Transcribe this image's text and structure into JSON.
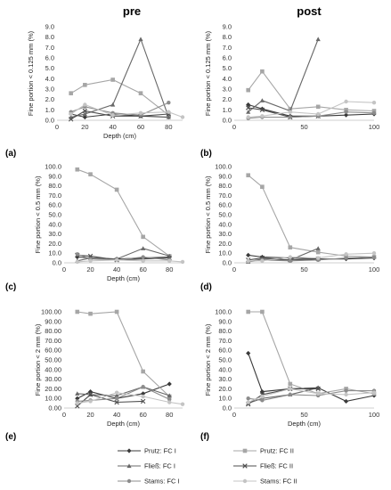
{
  "columns": [
    "pre",
    "post"
  ],
  "legend": [
    {
      "name": "Prutz: FC I",
      "color": "#3a3a3a",
      "marker": "diamond"
    },
    {
      "name": "Prutz: FC II",
      "color": "#a6a6a6",
      "marker": "square"
    },
    {
      "name": "Fließ: FC I",
      "color": "#686868",
      "marker": "triangle"
    },
    {
      "name": "Fließ: FC II",
      "color": "#4d4d4d",
      "marker": "x"
    },
    {
      "name": "Stams: FC I",
      "color": "#8c8c8c",
      "marker": "circle"
    },
    {
      "name": "Stams: FC II",
      "color": "#c4c4c4",
      "marker": "circle"
    }
  ],
  "chart_data": [
    {
      "panel": "(a)",
      "type": "line",
      "xlabel": "Depth (cm)",
      "ylabel": "Fine portion < 0.125 mm (%)",
      "xlim": [
        0,
        90
      ],
      "xticks": [
        0,
        20,
        40,
        60,
        80
      ],
      "ylim": [
        0,
        9
      ],
      "yticks": [
        "0.0",
        "1.0",
        "2.0",
        "3.0",
        "4.0",
        "5.0",
        "6.0",
        "7.0",
        "8.0",
        "9.0"
      ],
      "series": [
        {
          "name": "Prutz: FC I",
          "x": [
            10,
            20,
            40,
            60,
            80
          ],
          "y": [
            0.6,
            0.3,
            0.6,
            0.4,
            0.3
          ]
        },
        {
          "name": "Prutz: FC II",
          "x": [
            10,
            20,
            40,
            60,
            80
          ],
          "y": [
            2.6,
            3.4,
            3.9,
            2.6,
            0.5
          ]
        },
        {
          "name": "Fließ: FC I",
          "x": [
            10,
            20,
            40,
            60,
            80
          ],
          "y": [
            0.3,
            0.6,
            1.5,
            7.8,
            0.3
          ]
        },
        {
          "name": "Fließ: FC II",
          "x": [
            10,
            20,
            40,
            60,
            80
          ],
          "y": [
            0.1,
            0.9,
            0.4,
            0.4,
            0.6
          ]
        },
        {
          "name": "Stams: FC I",
          "x": [
            10,
            20,
            40,
            60,
            80
          ],
          "y": [
            0.8,
            1.3,
            0.7,
            0.5,
            1.7
          ]
        },
        {
          "name": "Stams: FC II",
          "x": [
            10,
            20,
            40,
            60,
            80,
            90
          ],
          "y": [
            0.6,
            1.5,
            0.5,
            0.7,
            0.8,
            0.3
          ]
        }
      ]
    },
    {
      "panel": "(b)",
      "type": "line",
      "xlabel": "",
      "ylabel": "Fine portion < 0.125 mm (%)",
      "xlim": [
        0,
        100
      ],
      "xticks": [
        0,
        50,
        100
      ],
      "ylim": [
        0,
        9
      ],
      "yticks": [
        "0.0",
        "1.0",
        "2.0",
        "3.0",
        "4.0",
        "5.0",
        "6.0",
        "7.0",
        "8.0",
        "9.0"
      ],
      "series": [
        {
          "name": "Prutz: FC I",
          "x": [
            10,
            20,
            40,
            60,
            80,
            100
          ],
          "y": [
            1.5,
            1.1,
            0.4,
            0.4,
            0.5,
            0.6
          ]
        },
        {
          "name": "Prutz: FC II",
          "x": [
            10,
            20,
            40,
            60,
            80,
            100
          ],
          "y": [
            2.9,
            4.7,
            1.1,
            1.3,
            1.0,
            0.9
          ]
        },
        {
          "name": "Fließ: FC I",
          "x": [
            10,
            20,
            40,
            60
          ],
          "y": [
            0.8,
            1.9,
            0.9,
            7.8
          ]
        },
        {
          "name": "Fließ: FC II",
          "x": [
            10,
            20,
            40,
            60
          ],
          "y": [
            1.2,
            1.0,
            0.3,
            0.4
          ]
        },
        {
          "name": "Stams: FC I",
          "x": [
            10,
            20,
            40,
            60,
            80,
            100
          ],
          "y": [
            0.2,
            0.3,
            0.3,
            0.4,
            0.8,
            0.7
          ]
        },
        {
          "name": "Stams: FC II",
          "x": [
            10,
            20,
            40,
            60,
            80,
            100
          ],
          "y": [
            0.3,
            0.4,
            0.8,
            0.6,
            1.8,
            1.7
          ]
        }
      ]
    },
    {
      "panel": "(c)",
      "type": "line",
      "xlabel": "Depth (cm)",
      "ylabel": "Fine portion < 0.5 mm (%)",
      "xlim": [
        0,
        90
      ],
      "xticks": [
        0,
        20,
        40,
        60,
        80
      ],
      "ylim": [
        0,
        100
      ],
      "yticks": [
        "0.0",
        "10.0",
        "20.0",
        "30.0",
        "40.0",
        "50.0",
        "60.0",
        "70.0",
        "80.0",
        "90.0",
        "100.0"
      ],
      "series": [
        {
          "name": "Prutz: FC I",
          "x": [
            10,
            20,
            40,
            60,
            80
          ],
          "y": [
            6,
            5,
            4,
            5,
            6
          ]
        },
        {
          "name": "Prutz: FC II",
          "x": [
            10,
            20,
            40,
            60,
            80
          ],
          "y": [
            97,
            92,
            76,
            27,
            7
          ]
        },
        {
          "name": "Fließ: FC I",
          "x": [
            10,
            20,
            40,
            60,
            80
          ],
          "y": [
            2,
            5,
            4,
            15,
            7
          ]
        },
        {
          "name": "Fließ: FC II",
          "x": [
            10,
            20,
            40,
            60,
            80
          ],
          "y": [
            8,
            7,
            3,
            4,
            5
          ]
        },
        {
          "name": "Stams: FC I",
          "x": [
            10,
            20,
            40,
            60,
            80
          ],
          "y": [
            9,
            4,
            3,
            6,
            3
          ]
        },
        {
          "name": "Stams: FC II",
          "x": [
            10,
            20,
            40,
            60,
            80,
            90
          ],
          "y": [
            1,
            2,
            3,
            2,
            2,
            1
          ]
        }
      ]
    },
    {
      "panel": "(d)",
      "type": "line",
      "xlabel": "",
      "ylabel": "Fine portion < 0.5 mm (%)",
      "xlim": [
        0,
        100
      ],
      "xticks": [
        0,
        50,
        100
      ],
      "ylim": [
        0,
        100
      ],
      "yticks": [
        "0.0",
        "10.0",
        "20.0",
        "30.0",
        "40.0",
        "50.0",
        "60.0",
        "70.0",
        "80.0",
        "90.0",
        "100.0"
      ],
      "series": [
        {
          "name": "Prutz: FC I",
          "x": [
            10,
            20,
            40,
            60,
            80,
            100
          ],
          "y": [
            8,
            6,
            5,
            4,
            4,
            5
          ]
        },
        {
          "name": "Prutz: FC II",
          "x": [
            10,
            20,
            40,
            60,
            80,
            100
          ],
          "y": [
            91,
            79,
            16,
            11,
            7,
            6
          ]
        },
        {
          "name": "Fließ: FC I",
          "x": [
            10,
            20,
            40,
            60
          ],
          "y": [
            1,
            4,
            3,
            15
          ]
        },
        {
          "name": "Fließ: FC II",
          "x": [
            10,
            20,
            40,
            60
          ],
          "y": [
            3,
            5,
            3,
            4
          ]
        },
        {
          "name": "Stams: FC I",
          "x": [
            10,
            20,
            40,
            60,
            80,
            100
          ],
          "y": [
            1,
            3,
            2,
            3,
            5,
            6
          ]
        },
        {
          "name": "Stams: FC II",
          "x": [
            10,
            20,
            40,
            60,
            80,
            100
          ],
          "y": [
            2,
            2,
            6,
            5,
            9,
            10
          ]
        }
      ]
    },
    {
      "panel": "(e)",
      "type": "line",
      "xlabel": "Depth (cm)",
      "ylabel": "Fine portion < 2 mm (%)",
      "xlim": [
        0,
        90
      ],
      "xticks": [
        0,
        20,
        40,
        60,
        80
      ],
      "ylim": [
        0,
        100
      ],
      "yticks": [
        "0.00",
        "10.00",
        "20.00",
        "30.00",
        "40.00",
        "50.00",
        "60.00",
        "70.00",
        "80.00",
        "90.00",
        "100.00"
      ],
      "series": [
        {
          "name": "Prutz: FC I",
          "x": [
            10,
            20,
            40,
            60,
            80
          ],
          "y": [
            10,
            17,
            10,
            15,
            25
          ]
        },
        {
          "name": "Prutz: FC II",
          "x": [
            10,
            20,
            40,
            60,
            80
          ],
          "y": [
            100,
            98,
            100,
            38,
            12
          ]
        },
        {
          "name": "Fließ: FC I",
          "x": [
            10,
            20,
            40,
            60,
            80
          ],
          "y": [
            15,
            14,
            13,
            22,
            13
          ]
        },
        {
          "name": "Fließ: FC II",
          "x": [
            10,
            20,
            40,
            60
          ],
          "y": [
            2,
            14,
            6,
            7
          ]
        },
        {
          "name": "Stams: FC I",
          "x": [
            10,
            20,
            40,
            60,
            80
          ],
          "y": [
            7,
            8,
            10,
            22,
            9
          ]
        },
        {
          "name": "Stams: FC II",
          "x": [
            10,
            20,
            40,
            60,
            80,
            90
          ],
          "y": [
            5,
            7,
            16,
            12,
            6,
            4
          ]
        }
      ]
    },
    {
      "panel": "(f)",
      "type": "line",
      "xlabel": "Depth (cm)",
      "ylabel": "Fine portion < 2 mm (%)",
      "xlim": [
        0,
        100
      ],
      "xticks": [
        0,
        50,
        100
      ],
      "ylim": [
        0,
        100
      ],
      "yticks": [
        "0.0",
        "10.0",
        "20.0",
        "30.0",
        "40.0",
        "50.0",
        "60.0",
        "70.0",
        "80.0",
        "90.0",
        "100.0"
      ],
      "series": [
        {
          "name": "Prutz: FC I",
          "x": [
            10,
            20,
            40,
            60,
            80,
            100
          ],
          "y": [
            57,
            17,
            20,
            21,
            7,
            13
          ]
        },
        {
          "name": "Prutz: FC II",
          "x": [
            10,
            20,
            40,
            60,
            80,
            100
          ],
          "y": [
            100,
            100,
            25,
            15,
            20,
            15
          ]
        },
        {
          "name": "Fließ: FC I",
          "x": [
            10,
            20,
            40,
            60
          ],
          "y": [
            5,
            10,
            14,
            21
          ]
        },
        {
          "name": "Fließ: FC II",
          "x": [
            10,
            20,
            40,
            60
          ],
          "y": [
            4,
            14,
            20,
            20
          ]
        },
        {
          "name": "Stams: FC I",
          "x": [
            10,
            20,
            40,
            60,
            80,
            100
          ],
          "y": [
            10,
            8,
            14,
            13,
            18,
            18
          ]
        },
        {
          "name": "Stams: FC II",
          "x": [
            10,
            20,
            40,
            60,
            80,
            100
          ],
          "y": [
            6,
            12,
            20,
            15,
            14,
            16
          ]
        }
      ]
    }
  ]
}
